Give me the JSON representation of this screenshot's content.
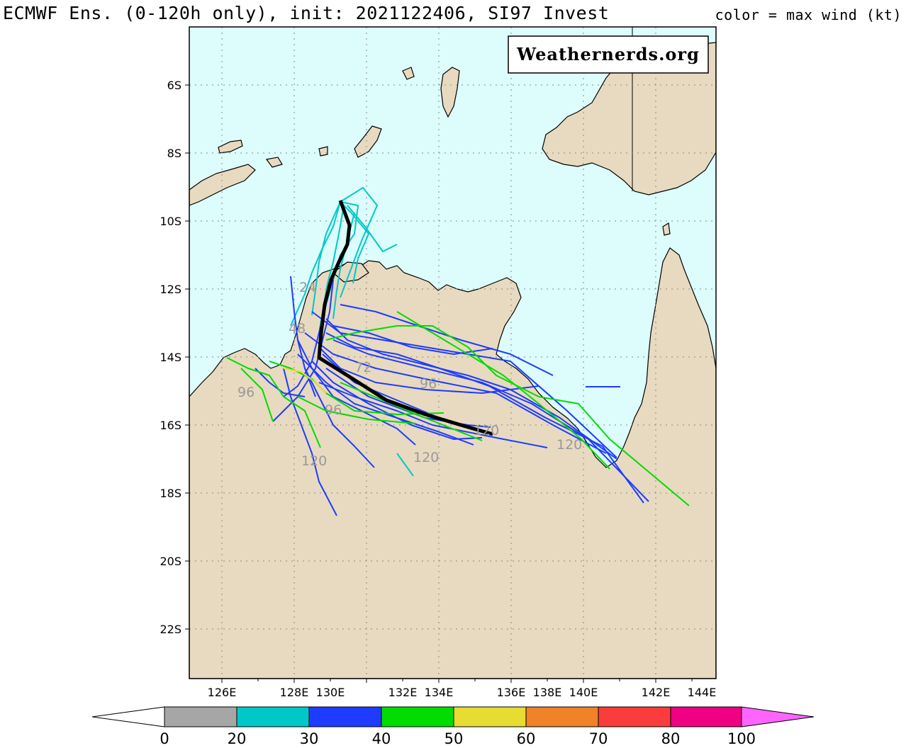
{
  "header": {
    "title": "ECMWF Ens. (0-120h only), init: 2021122406, SI97 Invest",
    "legend_note": "color = max wind (kt)"
  },
  "watermark": "Weathernerds.org",
  "axes": {
    "lat_labels": [
      "6S",
      "8S",
      "10S",
      "12S",
      "14S",
      "16S",
      "18S",
      "20S",
      "22S"
    ],
    "lon_labels": [
      "126E",
      "128E",
      "130E",
      "132E",
      "134E",
      "136E",
      "138E",
      "140E",
      "142E",
      "144E"
    ]
  },
  "colorbar": {
    "labels": [
      "0",
      "20",
      "30",
      "40",
      "50",
      "60",
      "70",
      "80",
      "100"
    ],
    "colors": [
      "#a6a6a6",
      "#00c8c8",
      "#1e3cff",
      "#00dc00",
      "#e6dc32",
      "#f08228",
      "#fa3c3c",
      "#f00082",
      "#ff64ff"
    ]
  },
  "colors": {
    "ocean": "#ddfcfc",
    "land": "#e8dac0",
    "mean_track": "#000000"
  },
  "forecast_hour_labels": [
    "24",
    "48",
    "72",
    "96",
    "120"
  ]
}
